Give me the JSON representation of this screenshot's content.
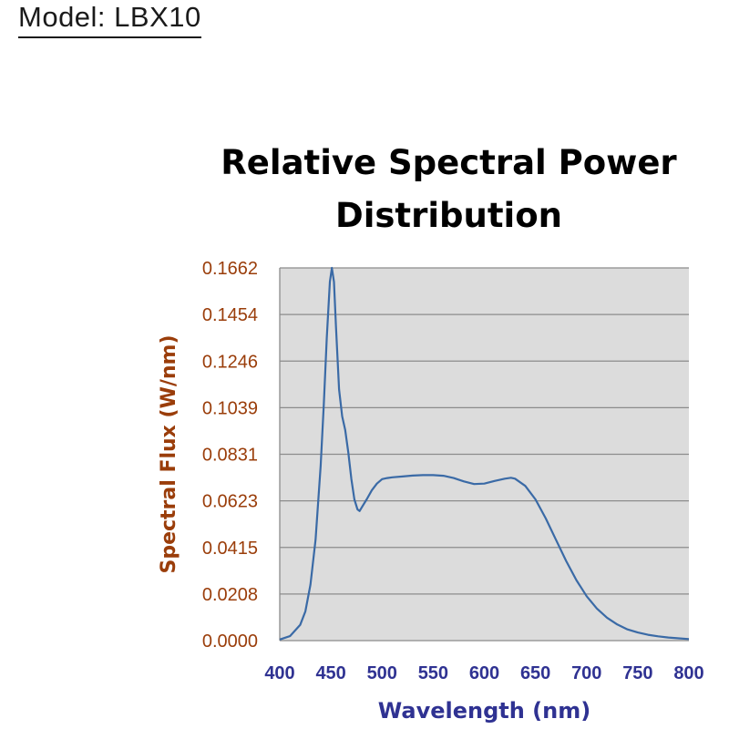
{
  "header": {
    "model": "Model: LBX10"
  },
  "chart_data": {
    "type": "line",
    "title_lines": [
      "Relative Spectral Power",
      "Distribution"
    ],
    "xlabel": "Wavelength (nm)",
    "ylabel": "Spectral Flux (W/nm)",
    "xlim": [
      400,
      800
    ],
    "ylim": [
      0.0,
      0.1662
    ],
    "x_ticks": [
      "400",
      "450",
      "500",
      "550",
      "600",
      "650",
      "700",
      "750",
      "800"
    ],
    "y_ticks": [
      "0.0000",
      "0.0208",
      "0.0415",
      "0.0623",
      "0.0831",
      "0.1039",
      "0.1246",
      "0.1454",
      "0.1662"
    ],
    "grid": true,
    "colors": {
      "line": "#3a6aa6",
      "plot_bg": "#dcdcdc",
      "grid": "#8c8c8c"
    },
    "series": [
      {
        "x": [
          400,
          410,
          420,
          425,
          430,
          435,
          440,
          443,
          446,
          449,
          451,
          453,
          455,
          458,
          461,
          464,
          467,
          470,
          473,
          476,
          478,
          481,
          485,
          490,
          495,
          500,
          505,
          510,
          520,
          530,
          540,
          550,
          560,
          570,
          580,
          590,
          600,
          610,
          620,
          626,
          630,
          640,
          650,
          660,
          670,
          680,
          690,
          700,
          710,
          720,
          730,
          740,
          750,
          760,
          770,
          780,
          790,
          800
        ],
        "y": [
          0.0005,
          0.002,
          0.007,
          0.013,
          0.025,
          0.045,
          0.078,
          0.105,
          0.135,
          0.16,
          0.1662,
          0.16,
          0.14,
          0.112,
          0.1,
          0.094,
          0.084,
          0.072,
          0.063,
          0.0585,
          0.0578,
          0.06,
          0.063,
          0.067,
          0.07,
          0.072,
          0.0725,
          0.0728,
          0.0732,
          0.0736,
          0.0738,
          0.0738,
          0.0735,
          0.0725,
          0.071,
          0.0698,
          0.07,
          0.0712,
          0.0722,
          0.0726,
          0.0722,
          0.069,
          0.063,
          0.0545,
          0.045,
          0.0355,
          0.027,
          0.0198,
          0.0143,
          0.0102,
          0.0072,
          0.005,
          0.0036,
          0.0026,
          0.0019,
          0.0014,
          0.001,
          0.0007
        ]
      }
    ]
  }
}
